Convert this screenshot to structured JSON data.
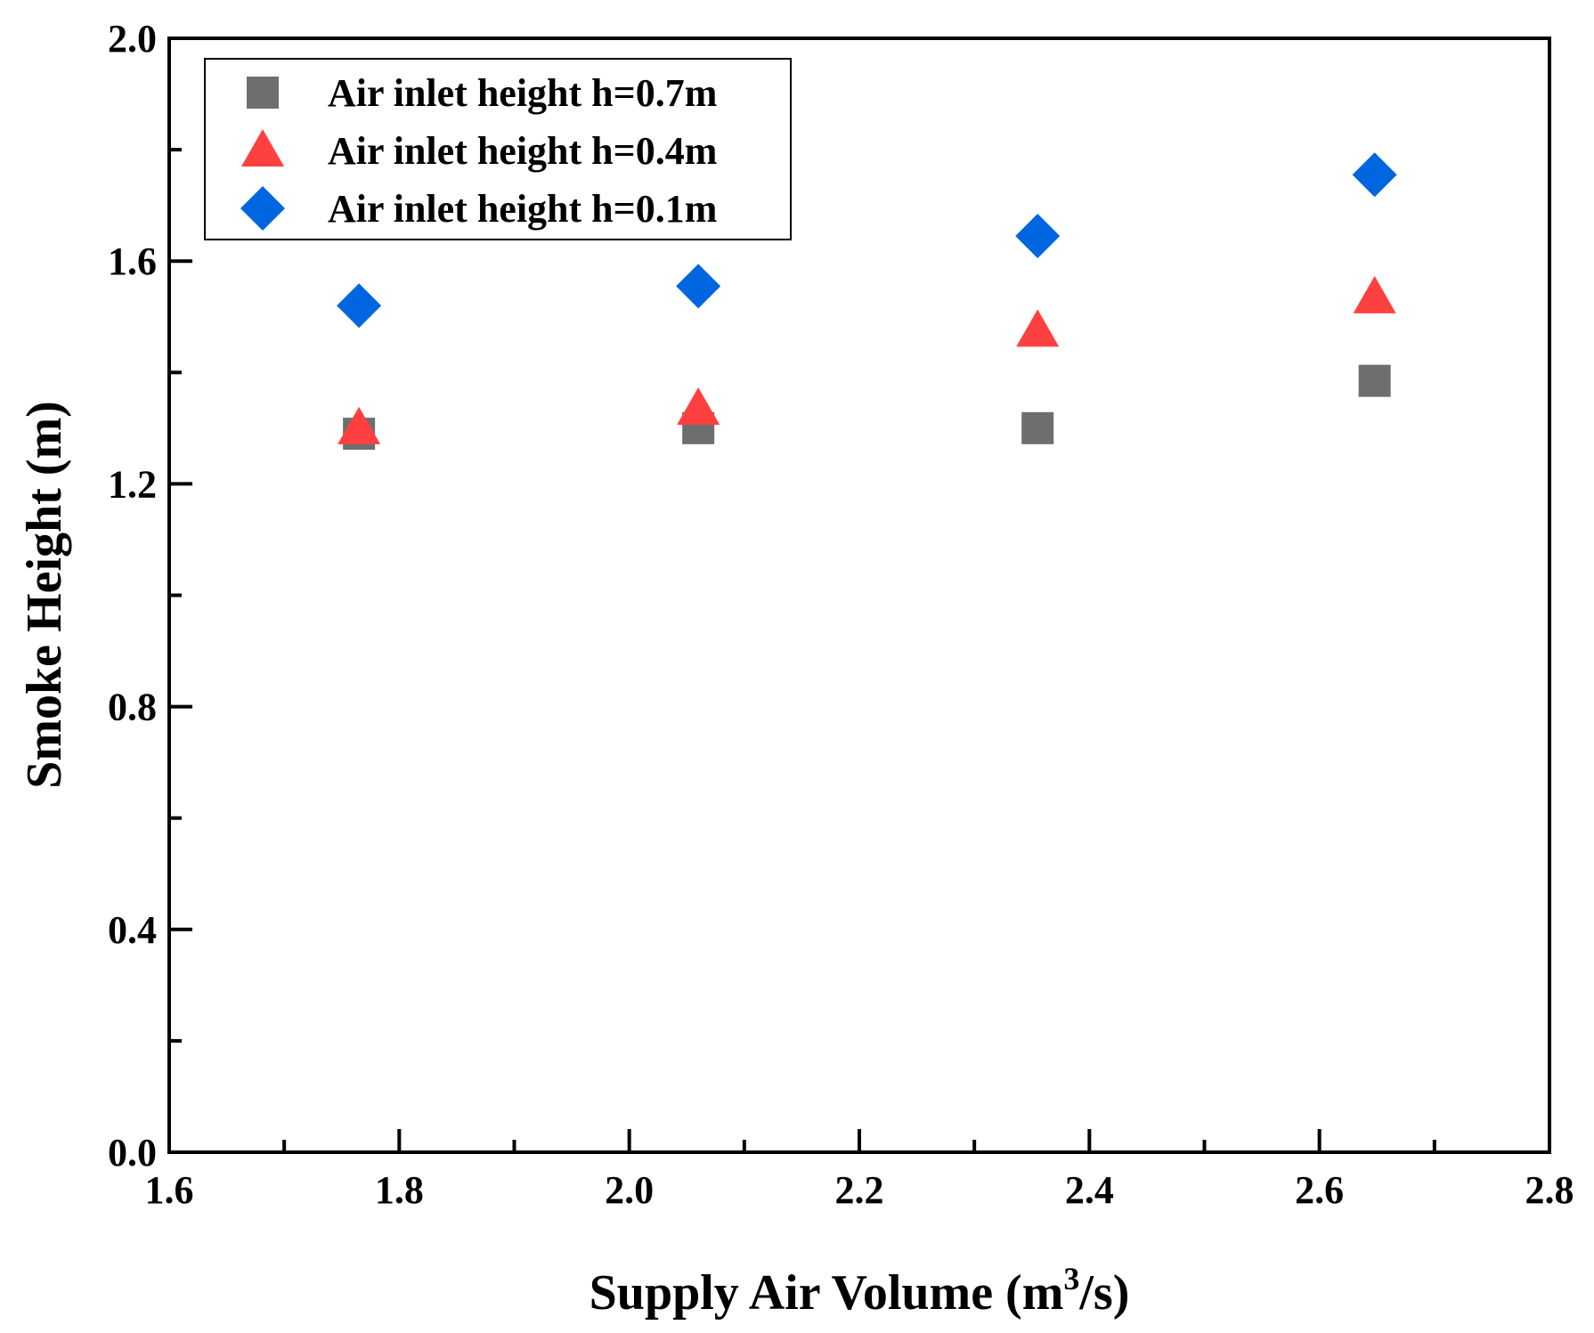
{
  "chart_data": {
    "type": "scatter",
    "title": "",
    "xlabel": "Supply Air Volume (m",
    "xlabel_superscript": "3",
    "xlabel_suffix": "/s)",
    "ylabel": "Smoke Height (m)",
    "xlim": [
      1.6,
      2.8
    ],
    "ylim": [
      0.0,
      2.0
    ],
    "x_ticks": [
      1.6,
      1.8,
      2.0,
      2.2,
      2.4,
      2.6,
      2.8
    ],
    "x_tick_labels": [
      "1.6",
      "1.8",
      "2.0",
      "2.2",
      "2.4",
      "2.6",
      "2.8"
    ],
    "x_minor_ticks": [
      1.7,
      1.9,
      2.1,
      2.3,
      2.5,
      2.7
    ],
    "y_ticks": [
      0.0,
      0.4,
      0.8,
      1.2,
      1.6,
      2.0
    ],
    "y_tick_labels": [
      "0.0",
      "0.4",
      "0.8",
      "1.2",
      "1.6",
      "2.0"
    ],
    "y_minor_ticks": [
      0.2,
      0.6,
      1.0,
      1.4,
      1.8
    ],
    "grid": false,
    "legend_position": "top-left",
    "series": [
      {
        "name": "Air inlet height h=0.7m",
        "marker": "square",
        "color": "#6e6e6e",
        "x": [
          1.765,
          2.06,
          2.355,
          2.648
        ],
        "y": [
          1.29,
          1.3,
          1.3,
          1.385
        ]
      },
      {
        "name": "Air inlet height h=0.4m",
        "marker": "triangle",
        "color": "#ff4040",
        "x": [
          1.765,
          2.06,
          2.355,
          2.648
        ],
        "y": [
          1.3,
          1.335,
          1.475,
          1.535
        ]
      },
      {
        "name": "Air inlet height h=0.1m",
        "marker": "diamond",
        "color": "#0066e0",
        "x": [
          1.765,
          2.06,
          2.355,
          2.648
        ],
        "y": [
          1.52,
          1.555,
          1.645,
          1.755
        ]
      }
    ]
  }
}
